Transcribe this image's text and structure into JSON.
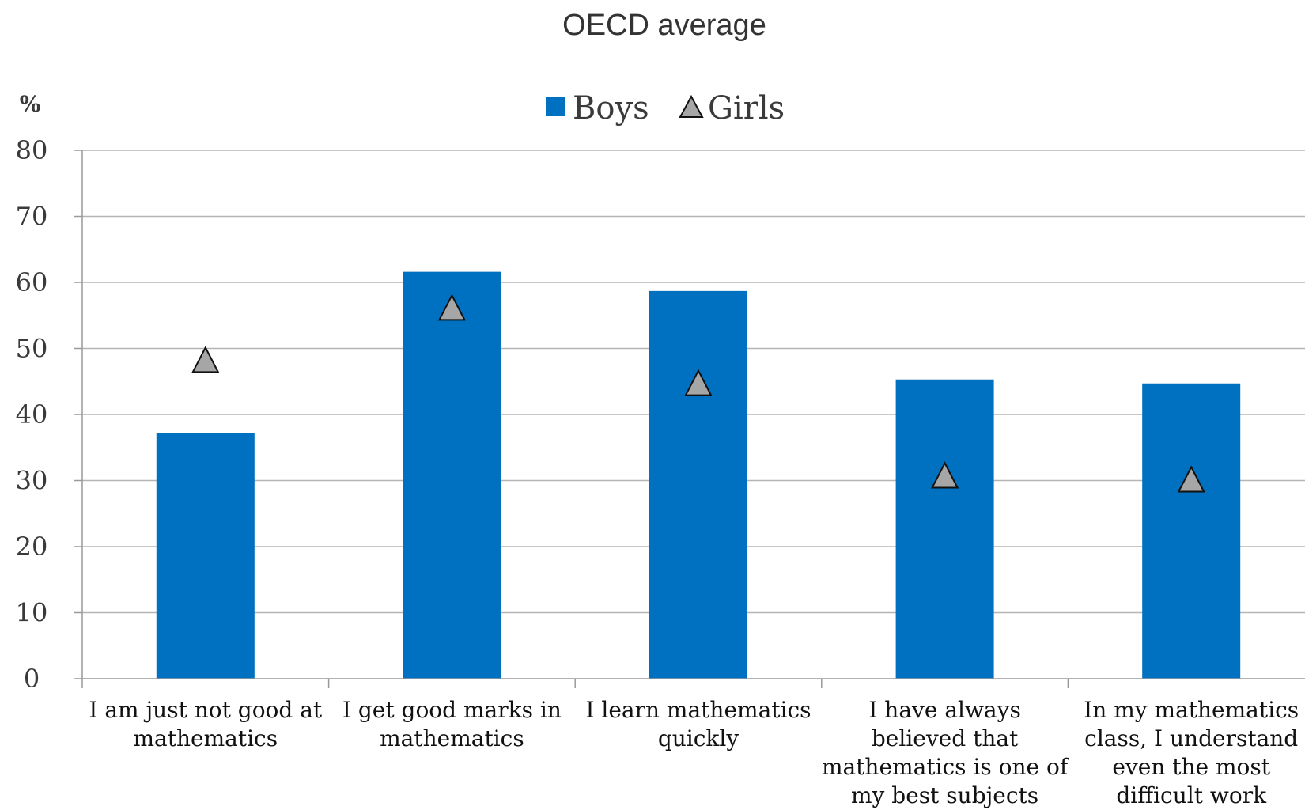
{
  "chart_data": {
    "type": "bar",
    "title": "OECD average",
    "ylabel": "%",
    "ylim": [
      0,
      80
    ],
    "yticks": [
      "0",
      "10",
      "20",
      "30",
      "40",
      "50",
      "60",
      "70",
      "80"
    ],
    "grid": true,
    "legend_position": "top-center",
    "categories": [
      [
        "I am just not good at",
        "mathematics"
      ],
      [
        "I get good marks in",
        "mathematics"
      ],
      [
        "I learn mathematics",
        "quickly"
      ],
      [
        "I have always",
        "believed that",
        "mathematics is one of",
        "my best subjects"
      ],
      [
        "In my mathematics",
        "class, I understand",
        "even the most",
        "difficult work"
      ]
    ],
    "series": [
      {
        "name": "Boys",
        "marker": "bar",
        "color": "#0070C0",
        "values": [
          37.2,
          61.6,
          58.7,
          45.3,
          44.7
        ]
      },
      {
        "name": "Girls",
        "marker": "triangle",
        "color": "#A6A6A6",
        "values": [
          48.1,
          56.0,
          44.6,
          30.6,
          30.0
        ]
      }
    ]
  }
}
